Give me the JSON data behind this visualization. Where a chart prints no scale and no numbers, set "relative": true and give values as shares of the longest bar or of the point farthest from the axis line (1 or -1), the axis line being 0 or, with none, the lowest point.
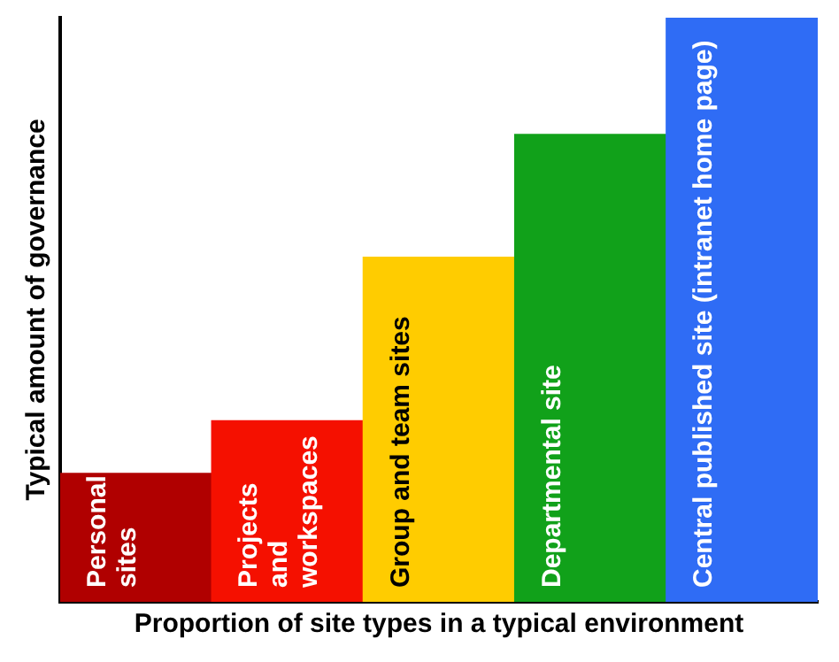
{
  "chart_data": {
    "type": "bar",
    "relative": true,
    "xlabel": "Proportion of site types in a typical environment",
    "ylabel": "Typical amount of governance",
    "categories": [
      "Personal sites",
      "Projects and workspaces",
      "Group and team sites",
      "Departmental site",
      "Central published site (intranet home page)"
    ],
    "values": [
      0.22,
      0.31,
      0.59,
      0.8,
      1.0
    ],
    "colors": [
      "#b00000",
      "#f51000",
      "#ffcc00",
      "#11a11a",
      "#2f6cf5"
    ],
    "grid": false,
    "legend": false
  }
}
